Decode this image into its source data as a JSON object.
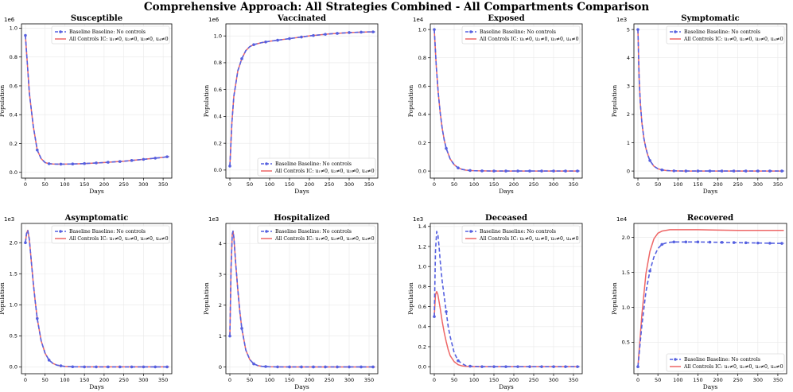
{
  "title": "Comprehensive Approach: All Strategies Combined - All Compartments Comparison",
  "colors": {
    "baseline": "#5560e0",
    "controls": "#ee6666",
    "grid": "#e8e8e8"
  },
  "legend_labels": {
    "baseline": "Baseline Baseline: No controls",
    "controls": "All Controls IC: u₁≠0, u₂≠0, u₃≠0, u₄≠0"
  },
  "chart_data": [
    {
      "type": "line",
      "title": "Susceptible",
      "xlabel": "Days",
      "ylabel": "Population",
      "offset": "1e6",
      "xlim": [
        -10,
        372
      ],
      "ylim": [
        -0.04,
        1.03
      ],
      "yticks": [
        0.0,
        0.2,
        0.4,
        0.6,
        0.8,
        1.0
      ],
      "ytick_labels": [
        "0.0",
        "0.2",
        "0.4",
        "0.6",
        "0.8",
        "1.0"
      ],
      "xticks": [
        0,
        50,
        100,
        150,
        200,
        250,
        300,
        350
      ],
      "legend": "upper-right",
      "series": [
        {
          "name": "Baseline Baseline: No controls",
          "style": "dashed-marker",
          "x": [
            0,
            10,
            20,
            30,
            40,
            50,
            60,
            70,
            80,
            100,
            120,
            150,
            200,
            250,
            300,
            350,
            365
          ],
          "y": [
            0.95,
            0.55,
            0.32,
            0.155,
            0.095,
            0.068,
            0.06,
            0.058,
            0.057,
            0.057,
            0.058,
            0.061,
            0.068,
            0.077,
            0.09,
            0.104,
            0.11
          ]
        },
        {
          "name": "All Controls IC: u₁≠0, u₂≠0, u₃≠0, u₄≠0",
          "style": "solid",
          "x": [
            0,
            10,
            20,
            30,
            40,
            50,
            60,
            70,
            80,
            100,
            120,
            150,
            200,
            250,
            300,
            350,
            365
          ],
          "y": [
            0.95,
            0.55,
            0.32,
            0.155,
            0.095,
            0.068,
            0.06,
            0.058,
            0.057,
            0.057,
            0.058,
            0.061,
            0.068,
            0.077,
            0.09,
            0.104,
            0.11
          ]
        }
      ]
    },
    {
      "type": "line",
      "title": "Vaccinated",
      "xlabel": "Days",
      "ylabel": "Population",
      "offset": "1e6",
      "xlim": [
        -10,
        372
      ],
      "ylim": [
        -0.06,
        1.09
      ],
      "yticks": [
        0.0,
        0.2,
        0.4,
        0.6,
        0.8,
        1.0
      ],
      "ytick_labels": [
        "0.0",
        "0.2",
        "0.4",
        "0.6",
        "0.8",
        "1.0"
      ],
      "xticks": [
        0,
        50,
        100,
        150,
        200,
        250,
        300,
        350
      ],
      "legend": "lower-right",
      "series": [
        {
          "name": "Baseline Baseline: No controls",
          "style": "dashed-marker",
          "x": [
            0,
            5,
            10,
            20,
            30,
            40,
            50,
            60,
            80,
            100,
            150,
            200,
            250,
            300,
            350,
            365
          ],
          "y": [
            0.03,
            0.35,
            0.55,
            0.74,
            0.83,
            0.89,
            0.92,
            0.935,
            0.95,
            0.96,
            0.98,
            1.0,
            1.015,
            1.025,
            1.03,
            1.03
          ]
        },
        {
          "name": "All Controls IC: u₁≠0, u₂≠0, u₃≠0, u₄≠0",
          "style": "solid",
          "x": [
            0,
            5,
            10,
            20,
            30,
            40,
            50,
            60,
            80,
            100,
            150,
            200,
            250,
            300,
            350,
            365
          ],
          "y": [
            0.03,
            0.35,
            0.55,
            0.74,
            0.83,
            0.89,
            0.92,
            0.935,
            0.95,
            0.96,
            0.98,
            1.0,
            1.015,
            1.025,
            1.03,
            1.03
          ]
        }
      ]
    },
    {
      "type": "line",
      "title": "Exposed",
      "xlabel": "Days",
      "ylabel": "Population",
      "offset": "1e4",
      "xlim": [
        -10,
        372
      ],
      "ylim": [
        -0.05,
        1.04
      ],
      "yticks": [
        0.0,
        0.2,
        0.4,
        0.6,
        0.8,
        1.0
      ],
      "ytick_labels": [
        "0.0",
        "0.2",
        "0.4",
        "0.6",
        "0.8",
        "1.0"
      ],
      "xticks": [
        0,
        50,
        100,
        150,
        200,
        250,
        300,
        350
      ],
      "legend": "upper-right",
      "series": [
        {
          "name": "Baseline Baseline: No controls",
          "style": "dashed-marker",
          "x": [
            0,
            5,
            10,
            15,
            20,
            25,
            30,
            40,
            50,
            60,
            70,
            80,
            100,
            120,
            150,
            200,
            250,
            300,
            350,
            365
          ],
          "y": [
            1.0,
            0.74,
            0.55,
            0.41,
            0.3,
            0.22,
            0.16,
            0.085,
            0.045,
            0.022,
            0.012,
            0.006,
            0.002,
            0.001,
            0,
            0,
            0,
            0,
            0,
            0
          ]
        },
        {
          "name": "All Controls IC: u₁≠0, u₂≠0, u₃≠0, u₄≠0",
          "style": "solid",
          "x": [
            0,
            5,
            10,
            15,
            20,
            25,
            30,
            40,
            50,
            60,
            70,
            80,
            100,
            120,
            150,
            200,
            250,
            300,
            350,
            365
          ],
          "y": [
            1.0,
            0.74,
            0.55,
            0.41,
            0.3,
            0.22,
            0.16,
            0.085,
            0.045,
            0.022,
            0.012,
            0.006,
            0.002,
            0.001,
            0,
            0,
            0,
            0,
            0,
            0
          ]
        }
      ]
    },
    {
      "type": "line",
      "title": "Symptomatic",
      "xlabel": "Days",
      "ylabel": "Population",
      "offset": "1e3",
      "xlim": [
        -10,
        372
      ],
      "ylim": [
        -0.25,
        5.2
      ],
      "yticks": [
        0,
        1,
        2,
        3,
        4,
        5
      ],
      "ytick_labels": [
        "0",
        "1",
        "2",
        "3",
        "4",
        "5"
      ],
      "xticks": [
        0,
        50,
        100,
        150,
        200,
        250,
        300,
        350
      ],
      "legend": "upper-right",
      "series": [
        {
          "name": "Baseline Baseline: No controls",
          "style": "dashed-marker",
          "x": [
            0,
            3,
            6,
            10,
            15,
            20,
            25,
            30,
            40,
            50,
            60,
            70,
            80,
            100,
            120,
            150,
            200,
            250,
            300,
            350,
            365
          ],
          "y": [
            5.0,
            3.3,
            2.4,
            1.7,
            1.15,
            0.8,
            0.55,
            0.37,
            0.17,
            0.08,
            0.04,
            0.02,
            0.01,
            0.003,
            0,
            0,
            0,
            0,
            0,
            0,
            0
          ]
        },
        {
          "name": "All Controls IC: u₁≠0, u₂≠0, u₃≠0, u₄≠0",
          "style": "solid",
          "x": [
            0,
            3,
            6,
            10,
            15,
            20,
            25,
            30,
            40,
            50,
            60,
            70,
            80,
            100,
            120,
            150,
            200,
            250,
            300,
            350,
            365
          ],
          "y": [
            5.0,
            3.3,
            2.4,
            1.7,
            1.15,
            0.8,
            0.55,
            0.37,
            0.17,
            0.08,
            0.04,
            0.02,
            0.01,
            0.003,
            0,
            0,
            0,
            0,
            0,
            0,
            0
          ]
        }
      ]
    },
    {
      "type": "line",
      "title": "Asymptomatic",
      "xlabel": "Days",
      "ylabel": "Population",
      "offset": "1e3",
      "xlim": [
        -10,
        372
      ],
      "ylim": [
        -0.11,
        2.31
      ],
      "yticks": [
        0.0,
        0.5,
        1.0,
        1.5,
        2.0
      ],
      "ytick_labels": [
        "0.0",
        "0.5",
        "1.0",
        "1.5",
        "2.0"
      ],
      "xticks": [
        0,
        50,
        100,
        150,
        200,
        250,
        300,
        350
      ],
      "legend": "upper-right",
      "series": [
        {
          "name": "Baseline Baseline: No controls",
          "style": "dashed-marker",
          "x": [
            0,
            3,
            6,
            10,
            15,
            20,
            25,
            30,
            40,
            50,
            60,
            70,
            80,
            100,
            120,
            150,
            200,
            250,
            300,
            350,
            365
          ],
          "y": [
            2.0,
            2.15,
            2.2,
            2.05,
            1.7,
            1.35,
            1.05,
            0.78,
            0.42,
            0.22,
            0.11,
            0.055,
            0.028,
            0.007,
            0.002,
            0,
            0,
            0,
            0,
            0,
            0
          ]
        },
        {
          "name": "All Controls IC: u₁≠0, u₂≠0, u₃≠0, u₄≠0",
          "style": "solid",
          "x": [
            0,
            3,
            6,
            10,
            15,
            20,
            25,
            30,
            40,
            50,
            60,
            70,
            80,
            100,
            120,
            150,
            200,
            250,
            300,
            350,
            365
          ],
          "y": [
            2.0,
            2.15,
            2.2,
            2.05,
            1.7,
            1.35,
            1.05,
            0.78,
            0.42,
            0.22,
            0.11,
            0.055,
            0.028,
            0.007,
            0.002,
            0,
            0,
            0,
            0,
            0,
            0
          ]
        }
      ]
    },
    {
      "type": "line",
      "title": "Hospitalized",
      "xlabel": "Days",
      "ylabel": "Population",
      "offset": "1e3",
      "xlim": [
        -10,
        372
      ],
      "ylim": [
        -0.22,
        4.65
      ],
      "yticks": [
        0,
        1,
        2,
        3,
        4
      ],
      "ytick_labels": [
        "0",
        "1",
        "2",
        "3",
        "4"
      ],
      "xticks": [
        0,
        50,
        100,
        150,
        200,
        250,
        300,
        350
      ],
      "legend": "upper-right",
      "series": [
        {
          "name": "Baseline Baseline: No controls",
          "style": "dashed-marker",
          "x": [
            0,
            3,
            6,
            8,
            10,
            15,
            20,
            25,
            30,
            40,
            50,
            60,
            70,
            80,
            100,
            120,
            150,
            200,
            250,
            300,
            350,
            365
          ],
          "y": [
            1.0,
            3.2,
            4.3,
            4.4,
            4.2,
            3.3,
            2.5,
            1.8,
            1.25,
            0.55,
            0.24,
            0.1,
            0.045,
            0.02,
            0.004,
            0.001,
            0,
            0,
            0,
            0,
            0,
            0
          ]
        },
        {
          "name": "All Controls IC: u₁≠0, u₂≠0, u₃≠0, u₄≠0",
          "style": "solid",
          "x": [
            0,
            3,
            6,
            8,
            10,
            15,
            20,
            25,
            30,
            40,
            50,
            60,
            70,
            80,
            100,
            120,
            150,
            200,
            250,
            300,
            350,
            365
          ],
          "y": [
            1.0,
            3.2,
            4.3,
            4.4,
            4.2,
            3.3,
            2.5,
            1.8,
            1.25,
            0.55,
            0.24,
            0.1,
            0.045,
            0.02,
            0.004,
            0.001,
            0,
            0,
            0,
            0,
            0,
            0
          ]
        }
      ]
    },
    {
      "type": "line",
      "title": "Deceased",
      "xlabel": "Days",
      "ylabel": "Population",
      "offset": "1e3",
      "xlim": [
        -10,
        372
      ],
      "ylim": [
        -0.07,
        1.43
      ],
      "yticks": [
        0.0,
        0.2,
        0.4,
        0.6,
        0.8,
        1.0,
        1.2,
        1.4
      ],
      "ytick_labels": [
        "0.0",
        "0.2",
        "0.4",
        "0.6",
        "0.8",
        "1.0",
        "1.2",
        "1.4"
      ],
      "xticks": [
        0,
        50,
        100,
        150,
        200,
        250,
        300,
        350
      ],
      "legend": "upper-right",
      "series": [
        {
          "name": "Baseline Baseline: No controls",
          "style": "dashed-marker",
          "x": [
            0,
            3,
            6,
            9,
            12,
            15,
            20,
            25,
            30,
            35,
            40,
            50,
            60,
            70,
            80,
            90,
            100,
            120,
            150,
            200,
            250,
            300,
            350,
            365
          ],
          "y": [
            0.5,
            1.15,
            1.35,
            1.32,
            1.2,
            1.05,
            0.85,
            0.7,
            0.55,
            0.4,
            0.3,
            0.14,
            0.06,
            0.03,
            0.01,
            0.005,
            0.003,
            0,
            0,
            0,
            0,
            0,
            0,
            0
          ]
        },
        {
          "name": "All Controls IC: u₁≠0, u₂≠0, u₃≠0, u₄≠0",
          "style": "solid",
          "x": [
            0,
            3,
            6,
            9,
            12,
            15,
            20,
            25,
            30,
            35,
            40,
            50,
            60,
            70,
            80,
            90,
            100,
            120,
            150,
            200,
            250,
            300,
            350,
            365
          ],
          "y": [
            0.5,
            0.72,
            0.75,
            0.72,
            0.65,
            0.58,
            0.45,
            0.34,
            0.25,
            0.17,
            0.11,
            0.05,
            0.02,
            0.008,
            0.003,
            0.001,
            0,
            0,
            0,
            0,
            0,
            0,
            0,
            0
          ]
        }
      ]
    },
    {
      "type": "line",
      "title": "Recovered",
      "xlabel": "Days",
      "ylabel": "Population",
      "offset": "1e4",
      "xlim": [
        -10,
        372
      ],
      "ylim": [
        0.05,
        2.2
      ],
      "yticks": [
        0.5,
        1.0,
        1.5,
        2.0
      ],
      "ytick_labels": [
        "0.5",
        "1.0",
        "1.5",
        "2.0"
      ],
      "xticks": [
        0,
        50,
        100,
        150,
        200,
        250,
        300,
        350
      ],
      "legend": "lower-right",
      "series": [
        {
          "name": "Baseline Baseline: No controls",
          "style": "dashed-marker",
          "x": [
            0,
            10,
            20,
            30,
            40,
            50,
            60,
            70,
            80,
            90,
            100,
            120,
            150,
            200,
            250,
            300,
            350,
            365
          ],
          "y": [
            0.15,
            0.75,
            1.22,
            1.52,
            1.72,
            1.84,
            1.9,
            1.92,
            1.93,
            1.935,
            1.935,
            1.935,
            1.935,
            1.93,
            1.925,
            1.92,
            1.915,
            1.915
          ]
        },
        {
          "name": "All Controls IC: u₁≠0, u₂≠0, u₃≠0, u₄≠0",
          "style": "solid",
          "x": [
            0,
            10,
            20,
            30,
            40,
            50,
            60,
            70,
            80,
            90,
            100,
            120,
            150,
            200,
            250,
            300,
            350,
            365
          ],
          "y": [
            0.15,
            0.9,
            1.48,
            1.8,
            1.98,
            2.06,
            2.09,
            2.1,
            2.11,
            2.11,
            2.11,
            2.11,
            2.11,
            2.105,
            2.1,
            2.1,
            2.1,
            2.1
          ]
        }
      ]
    }
  ]
}
